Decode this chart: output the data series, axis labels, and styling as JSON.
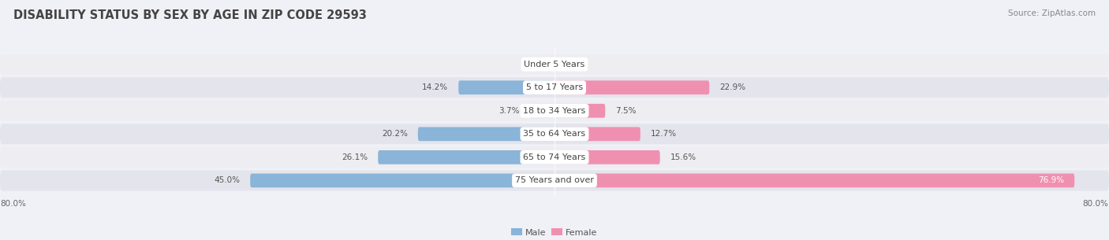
{
  "title": "DISABILITY STATUS BY SEX BY AGE IN ZIP CODE 29593",
  "source": "Source: ZipAtlas.com",
  "categories": [
    "Under 5 Years",
    "5 to 17 Years",
    "18 to 34 Years",
    "35 to 64 Years",
    "65 to 74 Years",
    "75 Years and over"
  ],
  "male_values": [
    0.0,
    14.2,
    3.7,
    20.2,
    26.1,
    45.0
  ],
  "female_values": [
    0.0,
    22.9,
    7.5,
    12.7,
    15.6,
    76.9
  ],
  "male_color": "#8ab4d8",
  "female_color": "#f090b0",
  "row_bg_color_odd": "#ededf2",
  "row_bg_color_even": "#e4e4ec",
  "axis_max": 80.0,
  "title_fontsize": 10.5,
  "label_fontsize": 8.0,
  "value_fontsize": 7.5,
  "source_fontsize": 7.5,
  "background_color": "#f0f0f7"
}
